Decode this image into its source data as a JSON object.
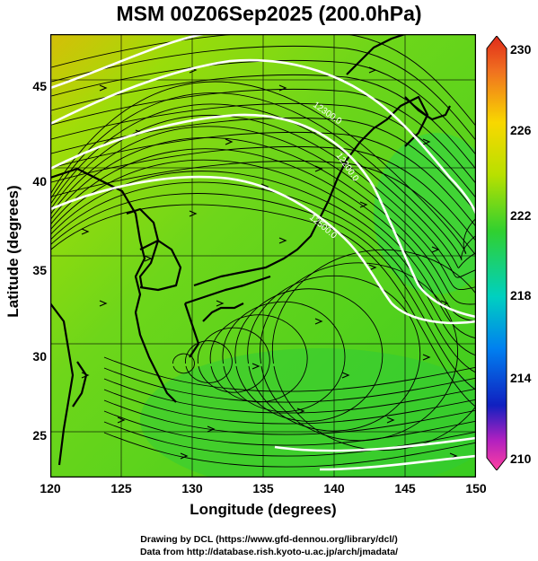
{
  "title": "MSM 00Z06Sep2025 (200.0hPa)",
  "xlabel": "Longitude (degrees)",
  "ylabel": "Latitude  (degrees)",
  "x_ticks": [
    "120",
    "125",
    "130",
    "135",
    "140",
    "145",
    "150"
  ],
  "y_ticks": [
    "45",
    "40",
    "35",
    "30",
    "25"
  ],
  "colorbar_ticks": [
    "230",
    "226",
    "222",
    "218",
    "214",
    "210"
  ],
  "contour_labels": [
    "12300.0",
    "12200.0",
    "12500.0"
  ],
  "credit_line1": "Drawing by DCL (https://www.gfd-dennou.org/library/dcl/)",
  "credit_line2": "Data from http://database.rish.kyoto-u.ac.jp/arch/jmadata/",
  "chart_data": {
    "type": "heatmap",
    "title": "MSM 00Z06Sep2025 (200.0hPa)",
    "xlabel": "Longitude (degrees)",
    "ylabel": "Latitude  (degrees)",
    "xlim": [
      120,
      150
    ],
    "ylim": [
      22.4,
      47.6
    ],
    "colorbar_range": [
      210,
      230
    ],
    "colorbar_ticks": [
      230,
      226,
      222,
      218,
      214,
      210
    ],
    "grid": true,
    "colors": {
      "high": "#d83a22",
      "warm": "#f5c400",
      "mid": "#4cd420",
      "cool": "#00c8d0",
      "low": "#1030c0",
      "lowest": "#e02090"
    },
    "overlay": "streamlines and white geopotential height contours with coastlines"
  }
}
